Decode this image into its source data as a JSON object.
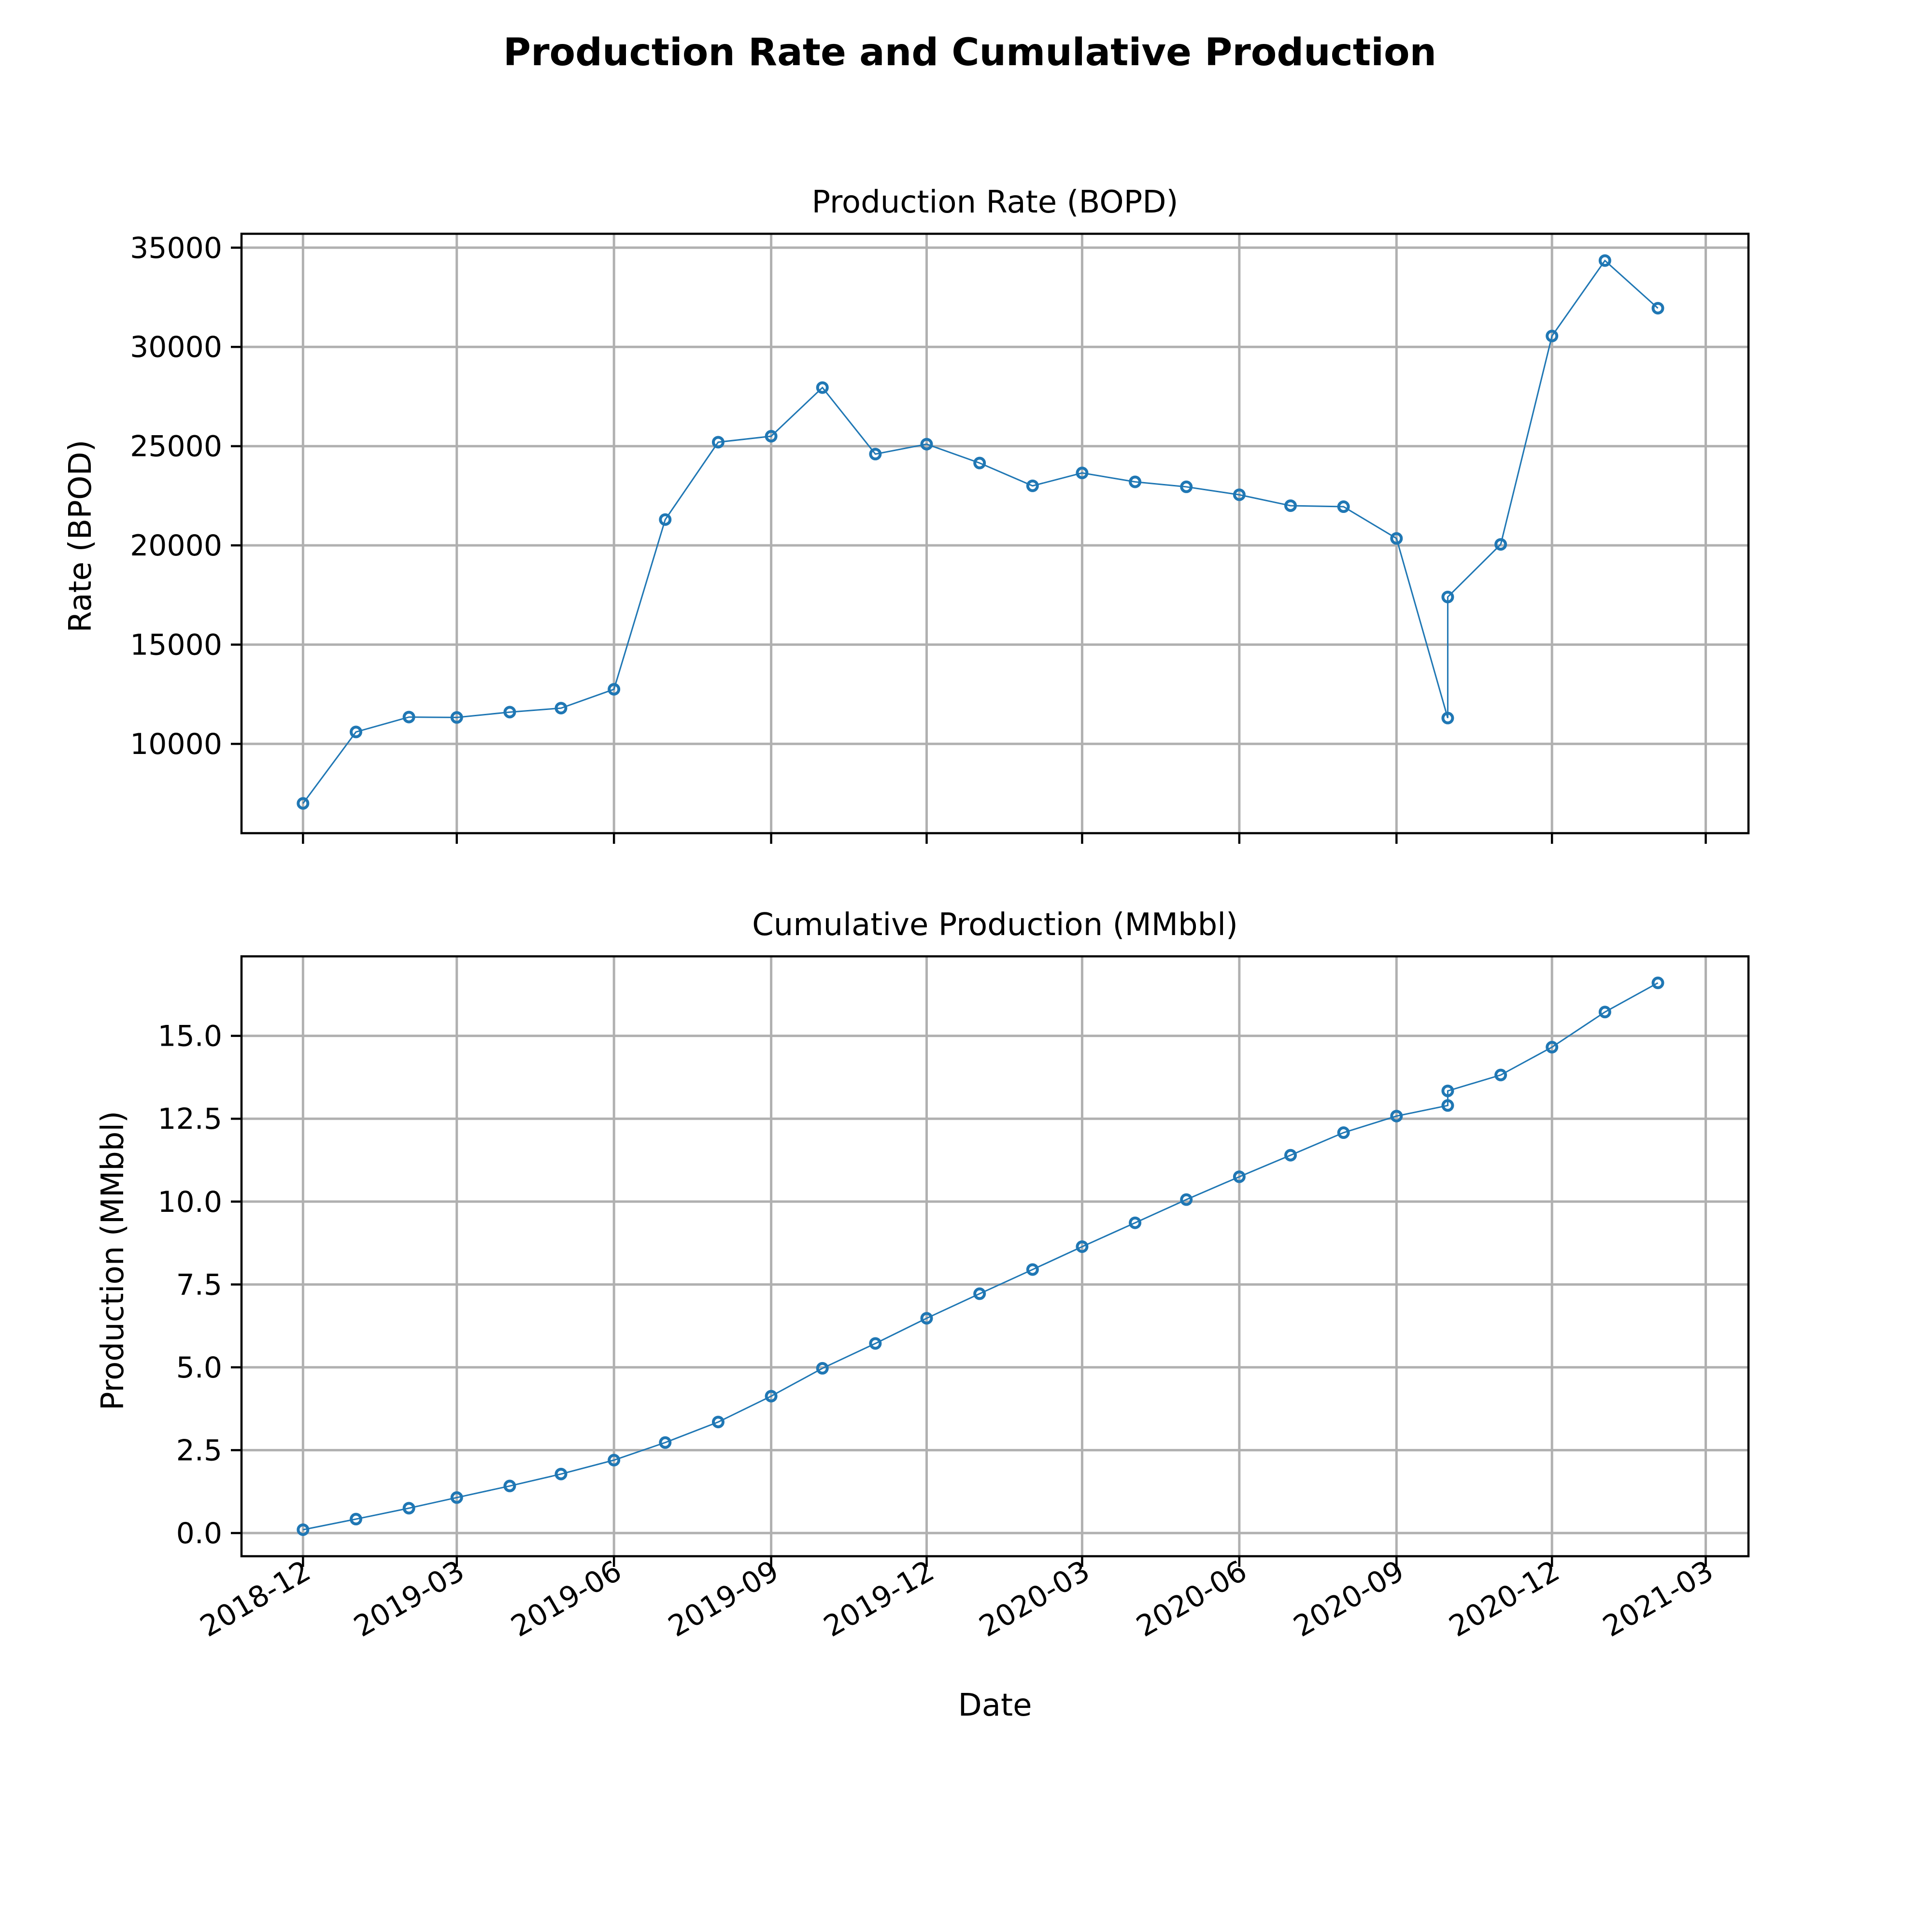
{
  "figure": {
    "title": "Production Rate and Cumulative Production",
    "xlabel": "Date",
    "x_tick_labels": [
      "2018-12",
      "2019-03",
      "2019-06",
      "2019-09",
      "2019-12",
      "2020-03",
      "2020-06",
      "2020-09",
      "2020-12",
      "2021-03"
    ],
    "line_color": "#1f77b4"
  },
  "chart_data": [
    {
      "type": "line",
      "title": "Production Rate (BOPD)",
      "xlabel": "Date",
      "ylabel": "Rate (BPOD)",
      "grid": true,
      "ylim": [
        5500,
        35700
      ],
      "y_ticks": [
        10000,
        15000,
        20000,
        25000,
        30000,
        35000
      ],
      "y_tick_labels": [
        "10000",
        "15000",
        "20000",
        "25000",
        "30000",
        "35000"
      ],
      "x": [
        "2018-12-01",
        "2019-01-01",
        "2019-02-01",
        "2019-03-01",
        "2019-04-01",
        "2019-05-01",
        "2019-06-01",
        "2019-07-01",
        "2019-08-01",
        "2019-09-01",
        "2019-10-01",
        "2019-11-01",
        "2019-12-01",
        "2020-01-01",
        "2020-02-01",
        "2020-03-01",
        "2020-04-01",
        "2020-05-01",
        "2020-06-01",
        "2020-07-01",
        "2020-08-01",
        "2020-09-01",
        "2020-10-01",
        "2020-10-01",
        "2020-11-01",
        "2020-12-01",
        "2021-01-01",
        "2021-02-01"
      ],
      "series": [
        {
          "values": [
            7000,
            10600,
            11350,
            11330,
            11600,
            11800,
            12750,
            21300,
            25200,
            25500,
            27950,
            24600,
            25100,
            24150,
            23000,
            23650,
            23200,
            22950,
            22550,
            22000,
            21950,
            20350,
            11300,
            17400,
            20050,
            30550,
            34350,
            31950
          ]
        }
      ]
    },
    {
      "type": "line",
      "title": "Cumulative Production (MMbbl)",
      "xlabel": "Date",
      "ylabel": "Production (MMbbl)",
      "grid": true,
      "ylim": [
        -0.7,
        17.4
      ],
      "y_ticks": [
        0,
        2.5,
        5,
        7.5,
        10,
        12.5,
        15
      ],
      "y_tick_labels": [
        "0.0",
        "2.5",
        "5.0",
        "7.5",
        "10.0",
        "12.5",
        "15.0"
      ],
      "x": [
        "2018-12-01",
        "2019-01-01",
        "2019-02-01",
        "2019-03-01",
        "2019-04-01",
        "2019-05-01",
        "2019-06-01",
        "2019-07-01",
        "2019-08-01",
        "2019-09-01",
        "2019-10-01",
        "2019-11-01",
        "2019-12-01",
        "2020-01-01",
        "2020-02-01",
        "2020-03-01",
        "2020-04-01",
        "2020-05-01",
        "2020-06-01",
        "2020-07-01",
        "2020-08-01",
        "2020-09-01",
        "2020-10-01",
        "2020-10-01",
        "2020-11-01",
        "2020-12-01",
        "2021-01-01",
        "2021-02-01"
      ],
      "series": [
        {
          "values": [
            0.1,
            0.42,
            0.75,
            1.07,
            1.42,
            1.78,
            2.2,
            2.73,
            3.35,
            4.13,
            4.97,
            5.72,
            6.48,
            7.22,
            7.95,
            8.64,
            9.36,
            10.06,
            10.75,
            11.4,
            12.08,
            12.58,
            12.9,
            13.34,
            13.82,
            14.66,
            15.72,
            16.6
          ]
        }
      ]
    }
  ]
}
